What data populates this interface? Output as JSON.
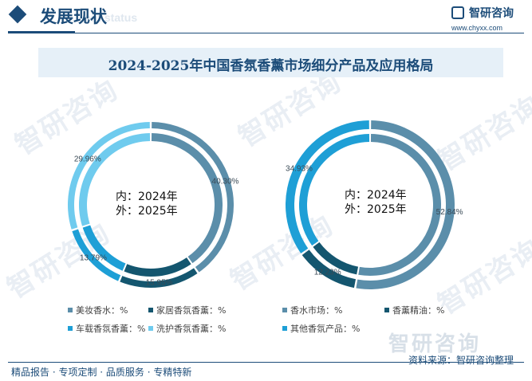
{
  "header": {
    "section_title": "发展现状",
    "section_subtitle_en": "ent status",
    "logo_name": "智研咨询",
    "logo_url": "www.chyxx.com"
  },
  "colors": {
    "brand": "#1c4c79",
    "title_bar_bg": "#e6f0f8"
  },
  "watermark": "智研咨询",
  "chart_data": [
    {
      "type": "pie",
      "title": "2024-2025年中国香氛香薰市场细分产品及应用格局",
      "center_label": [
        "内：2024年",
        "外：2025年"
      ],
      "rings": [
        "2024年",
        "2025年"
      ],
      "slices": [
        {
          "name": "美妆香水：%",
          "value": 40.3,
          "label": "40.30%",
          "color": "#5b8eaa"
        },
        {
          "name": "家居香氛香薰：%",
          "value": 15.95,
          "label": "15.95%",
          "color": "#14566f"
        },
        {
          "name": "车载香氛香薰：%",
          "value": 13.79,
          "label": "13.79%",
          "color": "#1e9fd6"
        },
        {
          "name": "洗护香氛香薰：%",
          "value": 29.96,
          "label": "29.96%",
          "color": "#6fcbee"
        }
      ]
    },
    {
      "type": "pie",
      "title": "2024-2025年中国香氛香薰市场细分产品及应用格局",
      "center_label": [
        "内：2024年",
        "外：2025年"
      ],
      "rings": [
        "2024年",
        "2025年"
      ],
      "slices": [
        {
          "name": "香水市场：%",
          "value": 52.84,
          "label": "52.84%",
          "color": "#5b8eaa"
        },
        {
          "name": "香薰精油：%",
          "value": 12.23,
          "label": "12.23%",
          "color": "#14566f"
        },
        {
          "name": "其他香氛产品：%",
          "value": 34.93,
          "label": "34.93%",
          "color": "#1e9fd6"
        }
      ]
    }
  ],
  "source": "资料来源：智研咨询整理",
  "footer": "精品报告 · 专项定制 · 品质服务 · 专精特新",
  "footer_logo": "智研咨询"
}
